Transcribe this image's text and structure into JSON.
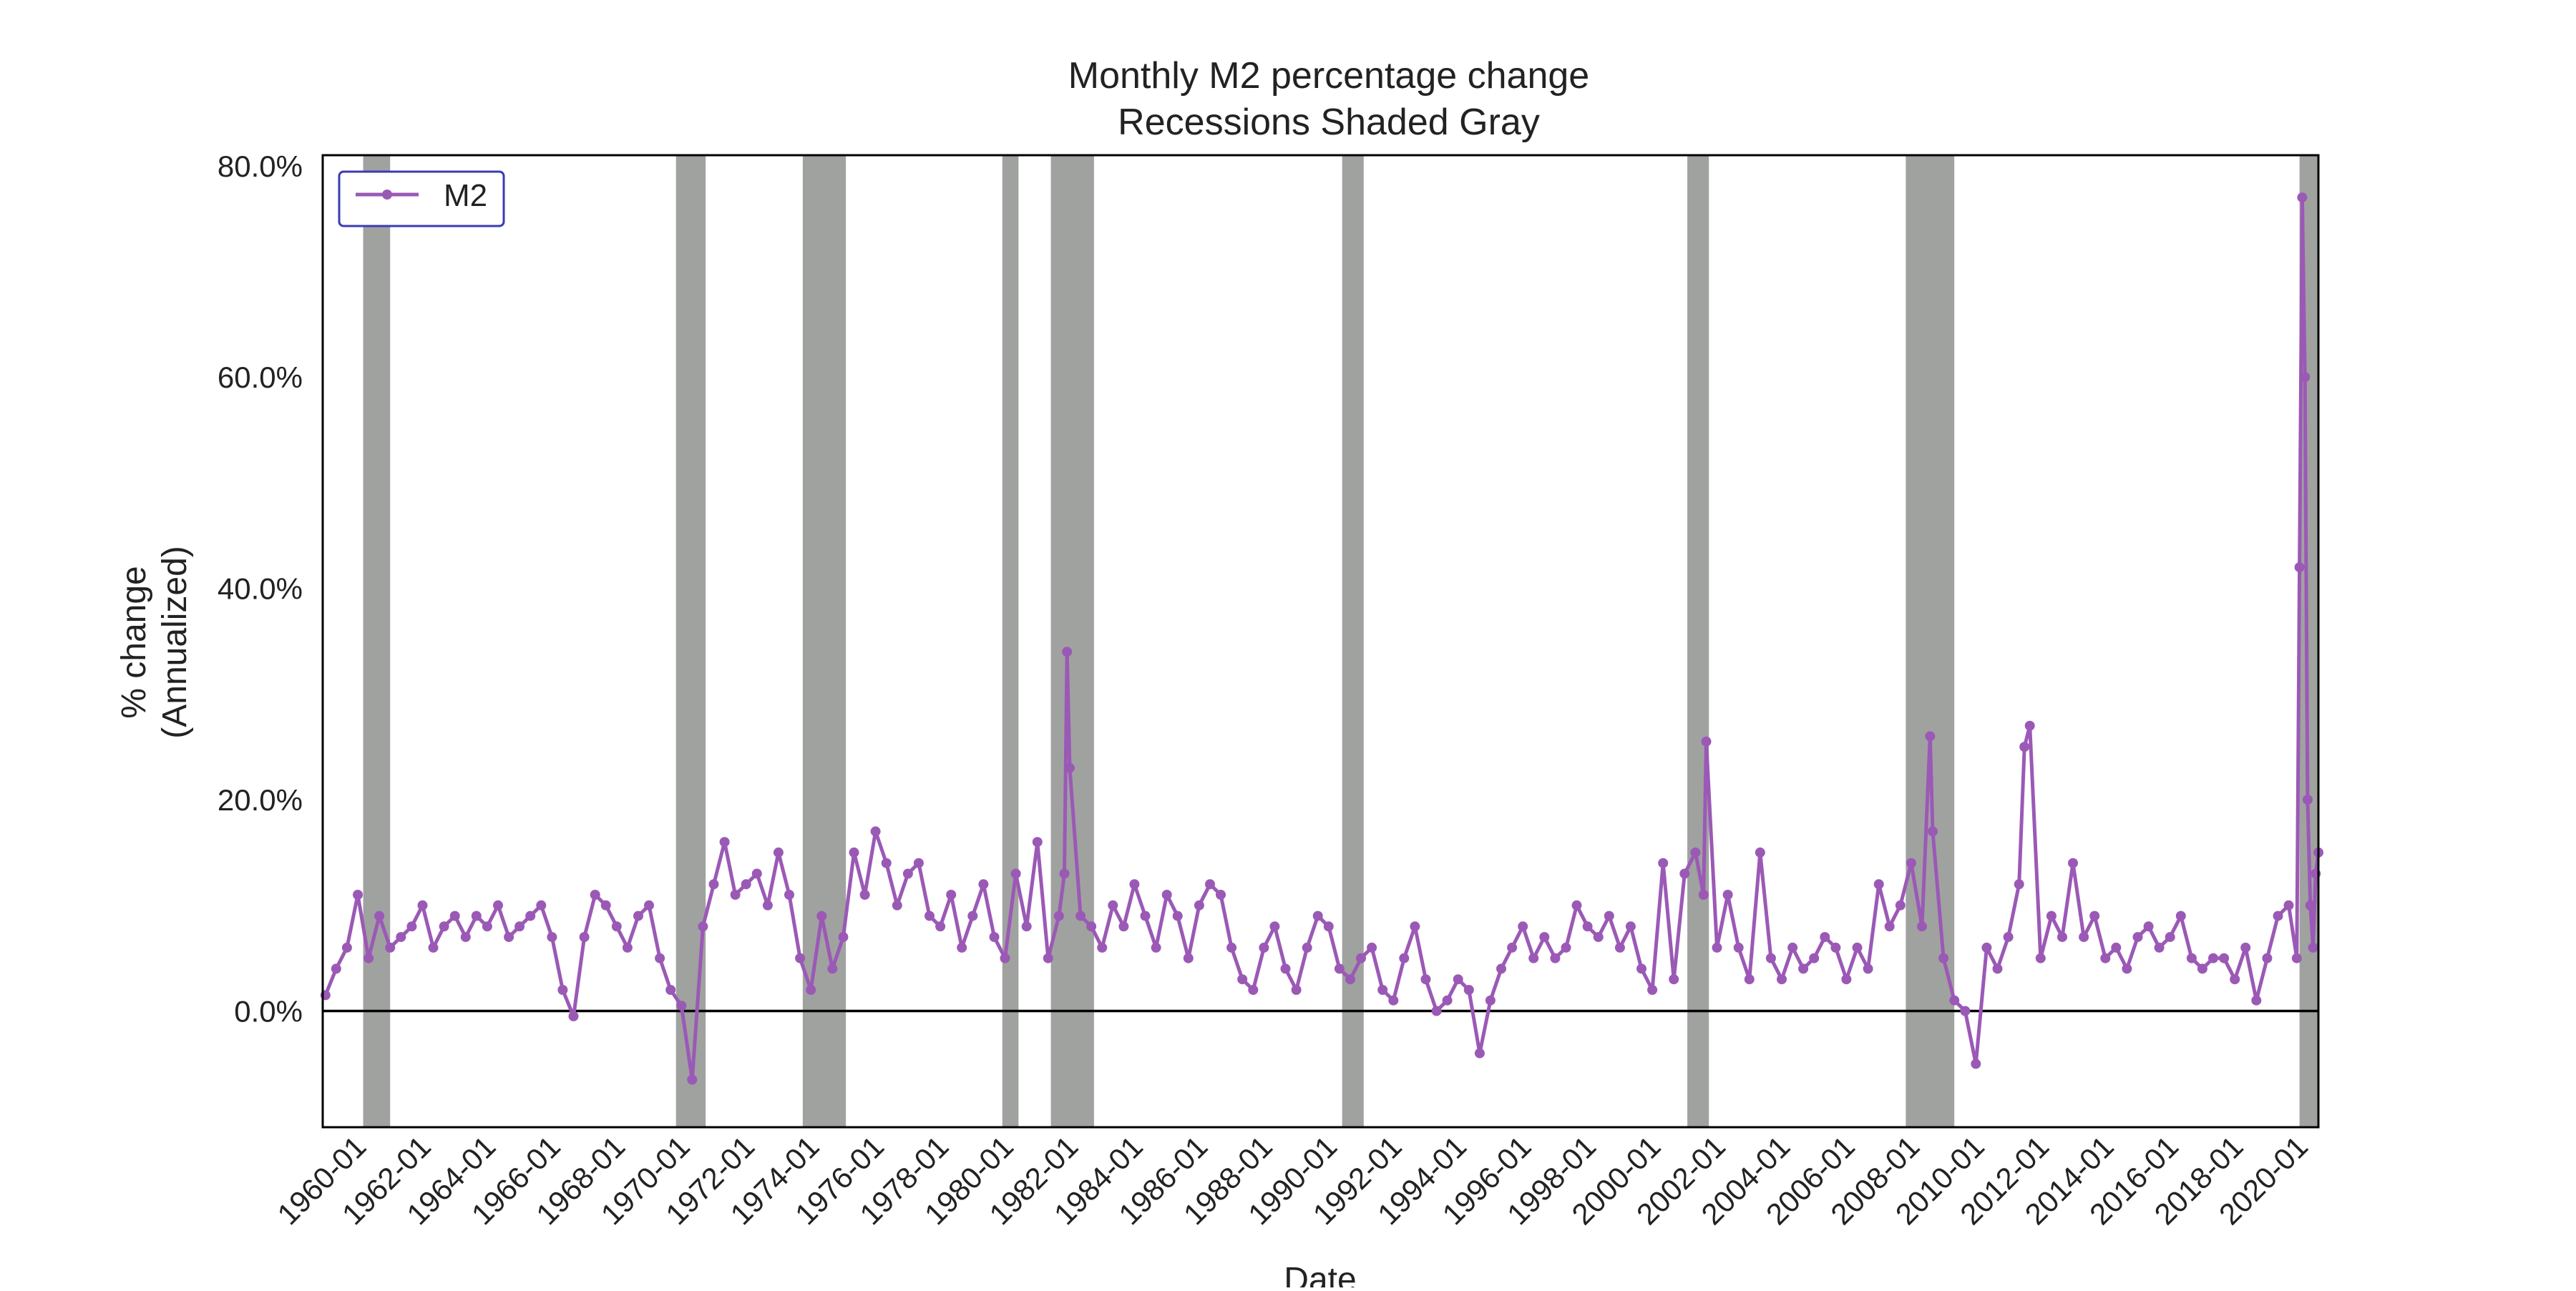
{
  "chart_data": {
    "type": "line",
    "title": "Monthly M2 percentage change",
    "subtitle": "Recessions Shaded Gray",
    "xlabel": "Date",
    "ylabel": [
      "% change",
      "(Annualized)"
    ],
    "x_range": [
      "1959-01",
      "2020-09"
    ],
    "ylim": [
      -11,
      81
    ],
    "y_ticks": [
      0,
      20,
      40,
      60,
      80
    ],
    "y_tick_labels": [
      "0.0%",
      "20.0%",
      "40.0%",
      "60.0%",
      "80.0%"
    ],
    "x_ticks": [
      "1960-01",
      "1962-01",
      "1964-01",
      "1966-01",
      "1968-01",
      "1970-01",
      "1972-01",
      "1974-01",
      "1976-01",
      "1978-01",
      "1980-01",
      "1982-01",
      "1984-01",
      "1986-01",
      "1988-01",
      "1990-01",
      "1992-01",
      "1994-01",
      "1996-01",
      "1998-01",
      "2000-01",
      "2002-01",
      "2004-01",
      "2006-01",
      "2008-01",
      "2010-01",
      "2012-01",
      "2014-01",
      "2016-01",
      "2018-01",
      "2020-01"
    ],
    "grid": false,
    "legend_position": "top-left",
    "zero_line": true,
    "colors": {
      "series": "#9b59b6",
      "recession": "#a0a2a0",
      "legend_border": "#3b3bb3",
      "axis": "#000000"
    },
    "recessions": [
      [
        "1960-04",
        "1961-02"
      ],
      [
        "1969-12",
        "1970-11"
      ],
      [
        "1973-11",
        "1975-03"
      ],
      [
        "1980-01",
        "1980-07"
      ],
      [
        "1981-07",
        "1982-11"
      ],
      [
        "1990-07",
        "1991-03"
      ],
      [
        "2001-03",
        "2001-11"
      ],
      [
        "2007-12",
        "2009-06"
      ],
      [
        "2020-02",
        "2020-09"
      ]
    ],
    "series": [
      {
        "name": "M2",
        "x": [
          "1959-02",
          "1959-06",
          "1959-10",
          "1960-02",
          "1960-06",
          "1960-10",
          "1961-02",
          "1961-06",
          "1961-10",
          "1962-02",
          "1962-06",
          "1962-10",
          "1963-02",
          "1963-06",
          "1963-10",
          "1964-02",
          "1964-06",
          "1964-10",
          "1965-02",
          "1965-06",
          "1965-10",
          "1966-02",
          "1966-06",
          "1966-10",
          "1967-02",
          "1967-06",
          "1967-10",
          "1968-02",
          "1968-06",
          "1968-10",
          "1969-02",
          "1969-06",
          "1969-10",
          "1970-02",
          "1970-06",
          "1970-10",
          "1971-02",
          "1971-06",
          "1971-10",
          "1972-02",
          "1972-06",
          "1972-10",
          "1973-02",
          "1973-06",
          "1973-10",
          "1974-02",
          "1974-06",
          "1974-10",
          "1975-02",
          "1975-06",
          "1975-10",
          "1976-02",
          "1976-06",
          "1976-10",
          "1977-02",
          "1977-06",
          "1977-10",
          "1978-02",
          "1978-06",
          "1978-10",
          "1979-02",
          "1979-06",
          "1979-10",
          "1980-02",
          "1980-06",
          "1980-10",
          "1981-02",
          "1981-06",
          "1981-10",
          "1981-12",
          "1982-01",
          "1982-02",
          "1982-06",
          "1982-10",
          "1983-02",
          "1983-06",
          "1983-10",
          "1984-02",
          "1984-06",
          "1984-10",
          "1985-02",
          "1985-06",
          "1985-10",
          "1986-02",
          "1986-06",
          "1986-10",
          "1987-02",
          "1987-06",
          "1987-10",
          "1988-02",
          "1988-06",
          "1988-10",
          "1989-02",
          "1989-06",
          "1989-10",
          "1990-02",
          "1990-06",
          "1990-10",
          "1991-02",
          "1991-06",
          "1991-10",
          "1992-02",
          "1992-06",
          "1992-10",
          "1993-02",
          "1993-06",
          "1993-10",
          "1994-02",
          "1994-06",
          "1994-10",
          "1995-02",
          "1995-06",
          "1995-10",
          "1996-02",
          "1996-06",
          "1996-10",
          "1997-02",
          "1997-06",
          "1997-10",
          "1998-02",
          "1998-06",
          "1998-10",
          "1999-02",
          "1999-06",
          "1999-10",
          "2000-02",
          "2000-06",
          "2000-10",
          "2001-02",
          "2001-06",
          "2001-09",
          "2001-10",
          "2002-02",
          "2002-06",
          "2002-10",
          "2003-02",
          "2003-06",
          "2003-10",
          "2004-02",
          "2004-06",
          "2004-10",
          "2005-02",
          "2005-06",
          "2005-10",
          "2006-02",
          "2006-06",
          "2006-10",
          "2007-02",
          "2007-06",
          "2007-10",
          "2008-02",
          "2008-06",
          "2008-09",
          "2008-10",
          "2009-02",
          "2009-06",
          "2009-10",
          "2010-02",
          "2010-06",
          "2010-10",
          "2011-02",
          "2011-06",
          "2011-08",
          "2011-10",
          "2012-02",
          "2012-06",
          "2012-10",
          "2013-02",
          "2013-06",
          "2013-10",
          "2014-02",
          "2014-06",
          "2014-10",
          "2015-02",
          "2015-06",
          "2015-10",
          "2016-02",
          "2016-06",
          "2016-10",
          "2017-02",
          "2017-06",
          "2017-10",
          "2018-02",
          "2018-06",
          "2018-10",
          "2019-02",
          "2019-06",
          "2019-10",
          "2020-01",
          "2020-02",
          "2020-03",
          "2020-04",
          "2020-05",
          "2020-06",
          "2020-07",
          "2020-08",
          "2020-09"
        ],
        "values": [
          1.5,
          4,
          6,
          11,
          5,
          9,
          6,
          7,
          8,
          10,
          6,
          8,
          9,
          7,
          9,
          8,
          10,
          7,
          8,
          9,
          10,
          7,
          2,
          -0.5,
          7,
          11,
          10,
          8,
          6,
          9,
          10,
          5,
          2,
          0.5,
          -6.5,
          8,
          12,
          16,
          11,
          12,
          13,
          10,
          15,
          11,
          5,
          2,
          9,
          4,
          7,
          15,
          11,
          17,
          14,
          10,
          13,
          14,
          9,
          8,
          11,
          6,
          9,
          12,
          7,
          5,
          13,
          8,
          16,
          5,
          9,
          13,
          34,
          23,
          9,
          8,
          6,
          10,
          8,
          12,
          9,
          6,
          11,
          9,
          5,
          10,
          12,
          11,
          6,
          3,
          2,
          6,
          8,
          4,
          2,
          6,
          9,
          8,
          4,
          3,
          5,
          6,
          2,
          1,
          5,
          8,
          3,
          0,
          1,
          3,
          2,
          -4,
          1,
          4,
          6,
          8,
          5,
          7,
          5,
          6,
          10,
          8,
          7,
          9,
          6,
          8,
          4,
          2,
          14,
          3,
          13,
          15,
          11,
          25.5,
          6,
          11,
          6,
          3,
          15,
          5,
          3,
          6,
          4,
          5,
          7,
          6,
          3,
          6,
          4,
          12,
          8,
          10,
          14,
          8,
          26,
          17,
          5,
          1,
          0,
          -5,
          6,
          4,
          7,
          12,
          25,
          27,
          5,
          9,
          7,
          14,
          7,
          9,
          5,
          6,
          4,
          7,
          8,
          6,
          7,
          9,
          5,
          4,
          5,
          5,
          3,
          6,
          1,
          5,
          9,
          10,
          5,
          42,
          77,
          60,
          20,
          10,
          6,
          13,
          15
        ]
      }
    ]
  }
}
